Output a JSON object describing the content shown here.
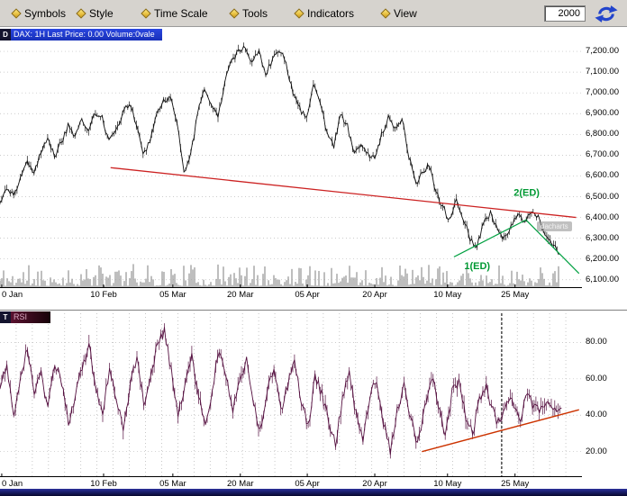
{
  "menu": {
    "items": [
      {
        "label": "Symbols"
      },
      {
        "label": "Style"
      },
      {
        "label": "Time Scale"
      },
      {
        "label": "Tools"
      },
      {
        "label": "Indicators"
      },
      {
        "label": "View"
      }
    ]
  },
  "toolbar": {
    "year": "2000"
  },
  "icons": {
    "menu_item_bullet": "gold-diamond",
    "refresh": "blue-circular-arrows",
    "price_panel_badge": "D",
    "indicator_panel_badge": "T"
  },
  "chart_data": [
    {
      "id": "price",
      "type": "line",
      "badge": "D",
      "title": "DAX: 1H Last Price: 0.00 Volume:0vale",
      "watermark": "dacharts",
      "symbol": "DAX",
      "timeframe": "1H",
      "seed": 11,
      "ylim": [
        6060,
        7300
      ],
      "yticks": [
        {
          "v": 7200,
          "label": "7,200.00"
        },
        {
          "v": 7100,
          "label": "7,100.00"
        },
        {
          "v": 7000,
          "label": "7,000.00"
        },
        {
          "v": 6900,
          "label": "6,900.00"
        },
        {
          "v": 6800,
          "label": "6,800.00"
        },
        {
          "v": 6700,
          "label": "6,700.00"
        },
        {
          "v": 6600,
          "label": "6,600.00"
        },
        {
          "v": 6500,
          "label": "6,500.00"
        },
        {
          "v": 6400,
          "label": "6,400.00"
        },
        {
          "v": 6300,
          "label": "6,300.00"
        },
        {
          "v": 6200,
          "label": "6,200.00"
        },
        {
          "v": 6100,
          "label": "6,100.00"
        }
      ],
      "x_ticks": [
        {
          "f": 0.003,
          "label": "0 Jan"
        },
        {
          "f": 0.178,
          "label": "10 Feb"
        },
        {
          "f": 0.297,
          "label": "05 Mar"
        },
        {
          "f": 0.413,
          "label": "20 Mar"
        },
        {
          "f": 0.528,
          "label": "05 Apr"
        },
        {
          "f": 0.644,
          "label": "20 Apr"
        },
        {
          "f": 0.769,
          "label": "10 May"
        },
        {
          "f": 0.885,
          "label": "25 May"
        }
      ],
      "series_span": 0.96,
      "jitter": 30,
      "line_color": "#101010",
      "volume_strip": true,
      "values": [
        6480,
        6540,
        6500,
        6600,
        6660,
        6620,
        6720,
        6780,
        6700,
        6760,
        6840,
        6800,
        6870,
        6830,
        6900,
        6880,
        6760,
        6820,
        6900,
        6950,
        6850,
        6700,
        6760,
        6900,
        6960,
        6980,
        6860,
        6620,
        6700,
        6900,
        7030,
        6950,
        6890,
        7050,
        7150,
        7200,
        7230,
        7150,
        7190,
        7090,
        7160,
        7210,
        7140,
        7000,
        6920,
        6880,
        7040,
        6960,
        6800,
        6740,
        6900,
        6840,
        6700,
        6760,
        6700,
        6680,
        6800,
        6880,
        6820,
        6880,
        6700,
        6560,
        6620,
        6650,
        6520,
        6450,
        6380,
        6480,
        6400,
        6300,
        6250,
        6390,
        6420,
        6340,
        6300,
        6360,
        6420,
        6380,
        6430,
        6400,
        6320,
        6280,
        6220
      ],
      "lines": [
        {
          "x1": 0.19,
          "y1": 6640,
          "x2": 0.99,
          "y2": 6400,
          "color": "#cc2222",
          "w": 1.3
        },
        {
          "x1": 0.78,
          "y1": 6210,
          "x2": 0.905,
          "y2": 6390,
          "color": "#00a040",
          "w": 1.2
        },
        {
          "x1": 0.905,
          "y1": 6385,
          "x2": 0.995,
          "y2": 6130,
          "color": "#00a040",
          "w": 1.2
        }
      ],
      "annotations": [
        {
          "text": "2(ED)",
          "f": 0.905,
          "v": 6505,
          "color": "#009933"
        },
        {
          "text": "1(ED)",
          "f": 0.82,
          "v": 6150,
          "color": "#009933"
        }
      ]
    },
    {
      "id": "oscillator",
      "type": "line",
      "badge": "T",
      "title": "RSI",
      "seed": 77,
      "ylim": [
        6,
        96
      ],
      "yticks": [
        {
          "v": 80,
          "label": "80.00"
        },
        {
          "v": 60,
          "label": "60.00"
        },
        {
          "v": 40,
          "label": "40.00"
        },
        {
          "v": 20,
          "label": "20.00"
        }
      ],
      "x_ticks": [
        {
          "f": 0.003,
          "label": "0 Jan"
        },
        {
          "f": 0.178,
          "label": "10 Feb"
        },
        {
          "f": 0.297,
          "label": "05 Mar"
        },
        {
          "f": 0.413,
          "label": "20 Mar"
        },
        {
          "f": 0.528,
          "label": "05 Apr"
        },
        {
          "f": 0.644,
          "label": "20 Apr"
        },
        {
          "f": 0.769,
          "label": "10 May"
        },
        {
          "f": 0.885,
          "label": "25 May"
        }
      ],
      "series_span": 0.965,
      "jitter": 6,
      "line_color": "#551040",
      "v_gridlines": 36,
      "highlight_vline": 0.862,
      "values": [
        55,
        68,
        42,
        60,
        76,
        52,
        64,
        44,
        70,
        58,
        36,
        50,
        66,
        78,
        54,
        40,
        66,
        50,
        30,
        56,
        72,
        46,
        60,
        80,
        86,
        64,
        40,
        56,
        72,
        50,
        36,
        54,
        76,
        62,
        44,
        58,
        70,
        46,
        30,
        52,
        66,
        42,
        56,
        72,
        48,
        34,
        60,
        52,
        36,
        24,
        48,
        64,
        40,
        26,
        50,
        60,
        36,
        20,
        42,
        58,
        38,
        24,
        44,
        62,
        46,
        28,
        52,
        58,
        40,
        30,
        48,
        56,
        42,
        34,
        50,
        46,
        38,
        52,
        44,
        42,
        48,
        42,
        44
      ],
      "lines": [
        {
          "x1": 0.725,
          "y1": 20,
          "x2": 0.995,
          "y2": 43,
          "color": "#cc3300",
          "w": 1.4
        }
      ]
    }
  ]
}
